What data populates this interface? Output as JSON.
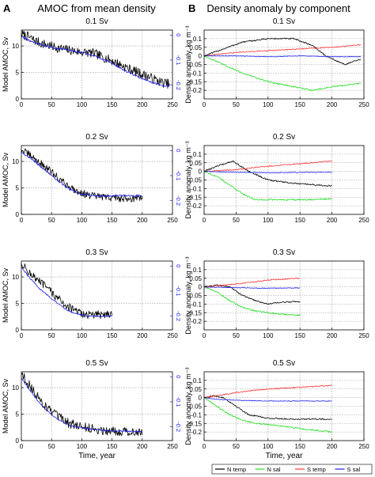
{
  "panel_headers": [
    {
      "letter": "A",
      "title": "AMOC from mean density"
    },
    {
      "letter": "B",
      "title": "Density anomaly by component"
    }
  ],
  "legend": {
    "entries": [
      {
        "label": "N temp",
        "color": "#000000"
      },
      {
        "label": "N sal",
        "color": "#22dd22"
      },
      {
        "label": "S temp",
        "color": "#ff3333"
      },
      {
        "label": "S sal",
        "color": "#2222ee"
      }
    ]
  },
  "chart_data": [
    {
      "type": "line",
      "panel": "A",
      "title": "0.1 Sv",
      "xlabel": "",
      "ylabel": "Model AMOC, Sv",
      "y2label": "",
      "xlim": [
        0,
        250
      ],
      "ylim": [
        0,
        13
      ],
      "y2lim": [
        -0.255,
        0.02
      ],
      "xticks": [
        0,
        50,
        100,
        150,
        200,
        250
      ],
      "yticks": [
        0,
        5,
        10
      ],
      "y2ticks": [
        0,
        -0.1,
        -0.2
      ],
      "y2tick_color": "#2222ee",
      "grid": true,
      "series": [
        {
          "name": "",
          "axis": "left",
          "color": "#000000",
          "noise": 0.9,
          "x": [
            0,
            10,
            30,
            60,
            90,
            120,
            150,
            180,
            210,
            230,
            245
          ],
          "y": [
            12.2,
            11.8,
            10.6,
            9.6,
            9.0,
            8.6,
            7.2,
            5.6,
            4.2,
            3.2,
            2.8
          ]
        },
        {
          "name": "",
          "axis": "right",
          "color": "#2222ee",
          "noise": 0.004,
          "x": [
            0,
            20,
            50,
            80,
            110,
            140,
            170,
            200,
            230,
            245
          ],
          "y": [
            -0.005,
            -0.03,
            -0.05,
            -0.06,
            -0.075,
            -0.1,
            -0.14,
            -0.175,
            -0.2,
            -0.205
          ]
        }
      ]
    },
    {
      "type": "line",
      "panel": "B",
      "title": "0.1 Sv",
      "xlabel": "",
      "ylabel": "Density anomaly, kg m⁻³",
      "xlim": [
        0,
        250
      ],
      "ylim": [
        -0.25,
        0.15
      ],
      "xticks": [
        0,
        50,
        100,
        150,
        200,
        250
      ],
      "yticks": [
        0.1,
        0.05,
        0,
        -0.05,
        -0.1,
        -0.15,
        -0.2
      ],
      "grid": true,
      "series": [
        {
          "name": "N temp",
          "color": "#000000",
          "noise": 0.004,
          "x": [
            0,
            30,
            60,
            100,
            140,
            170,
            190,
            220,
            245
          ],
          "y": [
            0,
            0.04,
            0.08,
            0.1,
            0.1,
            0.06,
            0.0,
            -0.05,
            -0.02
          ]
        },
        {
          "name": "N sal",
          "color": "#22dd22",
          "noise": 0.004,
          "x": [
            0,
            30,
            60,
            100,
            140,
            170,
            200,
            245
          ],
          "y": [
            0,
            -0.05,
            -0.1,
            -0.15,
            -0.18,
            -0.2,
            -0.18,
            -0.16
          ]
        },
        {
          "name": "S temp",
          "color": "#ff3333",
          "noise": 0.003,
          "x": [
            0,
            50,
            100,
            150,
            200,
            245
          ],
          "y": [
            0,
            0.02,
            0.03,
            0.04,
            0.05,
            0.065
          ]
        },
        {
          "name": "S sal",
          "color": "#2222ee",
          "noise": 0.002,
          "x": [
            0,
            50,
            100,
            150,
            200,
            245
          ],
          "y": [
            0,
            0.0,
            -0.005,
            0.0,
            -0.005,
            -0.005
          ]
        }
      ]
    },
    {
      "type": "line",
      "panel": "A",
      "title": "0.2 Sv",
      "xlabel": "",
      "ylabel": "Model AMOC, Sv",
      "y2label": "",
      "xlim": [
        0,
        250
      ],
      "ylim": [
        0,
        13
      ],
      "y2lim": [
        -0.255,
        0.02
      ],
      "xticks": [
        0,
        50,
        100,
        150,
        200,
        250
      ],
      "yticks": [
        0,
        5,
        10
      ],
      "y2ticks": [
        0,
        -0.1,
        -0.2
      ],
      "y2tick_color": "#2222ee",
      "grid": true,
      "series": [
        {
          "name": "",
          "axis": "left",
          "color": "#000000",
          "noise": 0.7,
          "x": [
            0,
            10,
            30,
            50,
            70,
            90,
            110,
            140,
            170,
            200
          ],
          "y": [
            12.2,
            11.5,
            9.8,
            8.0,
            6.0,
            4.5,
            3.6,
            3.2,
            3.0,
            3.1
          ]
        },
        {
          "name": "",
          "axis": "right",
          "color": "#2222ee",
          "noise": 0.004,
          "x": [
            0,
            20,
            40,
            60,
            80,
            100,
            120,
            150,
            200
          ],
          "y": [
            -0.005,
            -0.04,
            -0.08,
            -0.12,
            -0.155,
            -0.175,
            -0.18,
            -0.18,
            -0.18
          ]
        }
      ]
    },
    {
      "type": "line",
      "panel": "B",
      "title": "0.2 Sv",
      "xlabel": "",
      "ylabel": "Density anomaly, kg m⁻³",
      "xlim": [
        0,
        250
      ],
      "ylim": [
        -0.25,
        0.15
      ],
      "xticks": [
        0,
        50,
        100,
        150,
        200,
        250
      ],
      "yticks": [
        0.1,
        0.05,
        0,
        -0.05,
        -0.1,
        -0.15,
        -0.2
      ],
      "grid": true,
      "series": [
        {
          "name": "N temp",
          "color": "#000000",
          "noise": 0.004,
          "x": [
            0,
            20,
            45,
            70,
            100,
            140,
            200
          ],
          "y": [
            0,
            0.03,
            0.06,
            0.0,
            -0.05,
            -0.07,
            -0.085
          ]
        },
        {
          "name": "N sal",
          "color": "#22dd22",
          "noise": 0.004,
          "x": [
            0,
            20,
            40,
            60,
            80,
            120,
            160,
            200
          ],
          "y": [
            0,
            -0.03,
            -0.08,
            -0.13,
            -0.165,
            -0.165,
            -0.165,
            -0.16
          ]
        },
        {
          "name": "S temp",
          "color": "#ff3333",
          "noise": 0.003,
          "x": [
            0,
            50,
            100,
            150,
            200
          ],
          "y": [
            0,
            0.01,
            0.03,
            0.045,
            0.06
          ]
        },
        {
          "name": "S sal",
          "color": "#2222ee",
          "noise": 0.002,
          "x": [
            0,
            50,
            100,
            150,
            200
          ],
          "y": [
            0,
            -0.005,
            -0.008,
            -0.006,
            -0.005
          ]
        }
      ]
    },
    {
      "type": "line",
      "panel": "A",
      "title": "0.3 Sv",
      "xlabel": "",
      "ylabel": "Model AMOC, Sv",
      "y2label": "",
      "xlim": [
        0,
        250
      ],
      "ylim": [
        0,
        13
      ],
      "y2lim": [
        -0.255,
        0.02
      ],
      "xticks": [
        0,
        50,
        100,
        150,
        200,
        250
      ],
      "yticks": [
        0,
        5,
        10
      ],
      "y2ticks": [
        0,
        -0.1,
        -0.2
      ],
      "y2tick_color": "#2222ee",
      "grid": true,
      "series": [
        {
          "name": "",
          "axis": "left",
          "color": "#000000",
          "noise": 0.8,
          "x": [
            0,
            10,
            25,
            40,
            55,
            70,
            85,
            100,
            125,
            150
          ],
          "y": [
            12.5,
            11.2,
            9.5,
            8.2,
            6.5,
            5.0,
            3.8,
            3.0,
            2.8,
            3.2
          ]
        },
        {
          "name": "",
          "axis": "right",
          "color": "#2222ee",
          "noise": 0.003,
          "x": [
            0,
            15,
            30,
            45,
            60,
            75,
            90,
            110,
            150
          ],
          "y": [
            -0.005,
            -0.05,
            -0.09,
            -0.12,
            -0.15,
            -0.175,
            -0.19,
            -0.2,
            -0.2
          ]
        }
      ]
    },
    {
      "type": "line",
      "panel": "B",
      "title": "0.3 Sv",
      "xlabel": "",
      "ylabel": "Density anomaly, kg m⁻³",
      "xlim": [
        0,
        250
      ],
      "ylim": [
        -0.25,
        0.15
      ],
      "xticks": [
        0,
        50,
        100,
        150,
        200,
        250
      ],
      "yticks": [
        0.1,
        0.05,
        0,
        -0.05,
        -0.1,
        -0.15,
        -0.2
      ],
      "grid": true,
      "series": [
        {
          "name": "N temp",
          "color": "#000000",
          "noise": 0.004,
          "x": [
            0,
            20,
            40,
            60,
            80,
            100,
            120,
            150
          ],
          "y": [
            0,
            0.01,
            0.0,
            -0.05,
            -0.08,
            -0.1,
            -0.09,
            -0.085
          ]
        },
        {
          "name": "N sal",
          "color": "#22dd22",
          "noise": 0.004,
          "x": [
            0,
            20,
            40,
            60,
            80,
            100,
            125,
            150
          ],
          "y": [
            0,
            -0.03,
            -0.08,
            -0.12,
            -0.14,
            -0.15,
            -0.16,
            -0.165
          ]
        },
        {
          "name": "S temp",
          "color": "#ff3333",
          "noise": 0.003,
          "x": [
            0,
            30,
            60,
            100,
            150
          ],
          "y": [
            0,
            0.01,
            0.02,
            0.04,
            0.05
          ]
        },
        {
          "name": "S sal",
          "color": "#2222ee",
          "noise": 0.002,
          "x": [
            0,
            50,
            100,
            150
          ],
          "y": [
            0,
            -0.005,
            -0.008,
            -0.006
          ]
        }
      ]
    },
    {
      "type": "line",
      "panel": "A",
      "title": "0.5 Sv",
      "xlabel": "Time, year",
      "ylabel": "Model AMOC, Sv",
      "y2label": "",
      "xlim": [
        0,
        250
      ],
      "ylim": [
        0,
        13
      ],
      "y2lim": [
        -0.255,
        0.02
      ],
      "xticks": [
        0,
        50,
        100,
        150,
        200,
        250
      ],
      "yticks": [
        0,
        5,
        10
      ],
      "y2ticks": [
        0,
        -0.1,
        -0.2
      ],
      "y2tick_color": "#2222ee",
      "grid": true,
      "series": [
        {
          "name": "",
          "axis": "left",
          "color": "#000000",
          "noise": 0.9,
          "x": [
            0,
            10,
            25,
            40,
            60,
            80,
            100,
            130,
            160,
            200
          ],
          "y": [
            12.8,
            11.0,
            8.5,
            6.5,
            4.5,
            3.2,
            2.6,
            2.0,
            1.8,
            1.6
          ]
        },
        {
          "name": "",
          "axis": "right",
          "color": "#2222ee",
          "noise": 0.003,
          "x": [
            0,
            10,
            25,
            40,
            60,
            80,
            100,
            140,
            200
          ],
          "y": [
            -0.005,
            -0.04,
            -0.09,
            -0.13,
            -0.17,
            -0.195,
            -0.205,
            -0.215,
            -0.22
          ]
        }
      ]
    },
    {
      "type": "line",
      "panel": "B",
      "title": "0.5 Sv",
      "xlabel": "Time, year",
      "ylabel": "Density anomaly, kg m⁻³",
      "xlim": [
        0,
        250
      ],
      "ylim": [
        -0.25,
        0.15
      ],
      "xticks": [
        0,
        50,
        100,
        150,
        200,
        250
      ],
      "yticks": [
        0.1,
        0.05,
        0,
        -0.05,
        -0.1,
        -0.15,
        -0.2
      ],
      "grid": true,
      "series": [
        {
          "name": "N temp",
          "color": "#000000",
          "noise": 0.004,
          "x": [
            0,
            15,
            30,
            50,
            70,
            100,
            140,
            170,
            200
          ],
          "y": [
            0,
            0.01,
            0.0,
            -0.05,
            -0.1,
            -0.12,
            -0.125,
            -0.125,
            -0.125
          ]
        },
        {
          "name": "N sal",
          "color": "#22dd22",
          "noise": 0.004,
          "x": [
            0,
            20,
            40,
            60,
            80,
            110,
            150,
            200
          ],
          "y": [
            0,
            -0.05,
            -0.1,
            -0.13,
            -0.15,
            -0.16,
            -0.18,
            -0.2
          ]
        },
        {
          "name": "S temp",
          "color": "#ff3333",
          "noise": 0.003,
          "x": [
            0,
            20,
            50,
            100,
            150,
            200
          ],
          "y": [
            0,
            0.01,
            0.03,
            0.05,
            0.06,
            0.07
          ]
        },
        {
          "name": "S sal",
          "color": "#2222ee",
          "noise": 0.002,
          "x": [
            0,
            20,
            50,
            100,
            150,
            200
          ],
          "y": [
            0,
            -0.01,
            -0.015,
            -0.02,
            -0.02,
            -0.02
          ]
        }
      ]
    }
  ]
}
